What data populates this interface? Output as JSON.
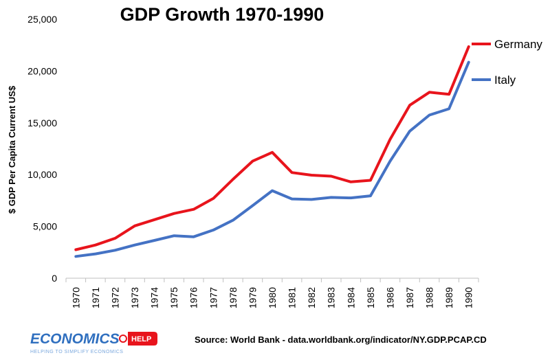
{
  "chart_data": {
    "type": "line",
    "title": "GDP Growth 1970-1990",
    "xlabel": "",
    "ylabel": "$ GDP Per Capita Current US$",
    "categories": [
      "1970",
      "1971",
      "1972",
      "1973",
      "1974",
      "1975",
      "1976",
      "1977",
      "1978",
      "1979",
      "1980",
      "1981",
      "1982",
      "1983",
      "1984",
      "1985",
      "1986",
      "1987",
      "1988",
      "1989",
      "1990"
    ],
    "ylim": [
      0,
      25000
    ],
    "yticks": [
      0,
      5000,
      10000,
      15000,
      20000,
      25000
    ],
    "ytick_labels": [
      "0",
      "5,000",
      "10,000",
      "15,000",
      "20,000",
      "25,000"
    ],
    "grid": false,
    "legend_position": "top-right",
    "series": [
      {
        "name": "Germany",
        "color": "#e8141c",
        "values": [
          2750,
          3200,
          3850,
          5050,
          5650,
          6250,
          6650,
          7700,
          9550,
          11300,
          12150,
          10200,
          9950,
          9850,
          9300,
          9450,
          13400,
          16700,
          17950,
          17750,
          22350
        ]
      },
      {
        "name": "Italy",
        "color": "#4472c4",
        "values": [
          2100,
          2350,
          2700,
          3200,
          3650,
          4100,
          4000,
          4650,
          5600,
          7000,
          8450,
          7650,
          7600,
          7800,
          7750,
          7950,
          11300,
          14200,
          15750,
          16350,
          20850
        ]
      }
    ]
  },
  "source_text": "Source: World Bank - data.worldbank.org/indicator/NY.GDP.PCAP.CD",
  "brand": {
    "name": "ECONOMICS",
    "badge": "HELP",
    "tagline": "HELPING TO SIMPLIFY ECONOMICS",
    "color": "#2f6fbf",
    "badge_color": "#e8141c"
  }
}
